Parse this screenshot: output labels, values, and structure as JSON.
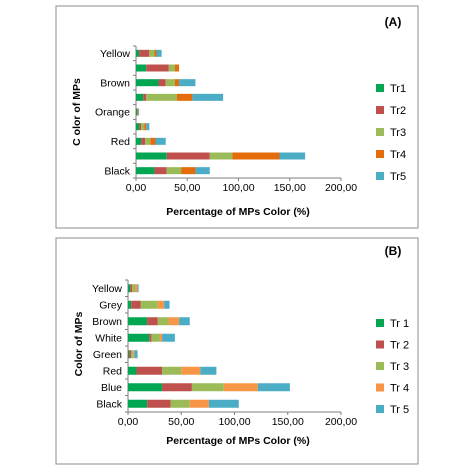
{
  "chart_data": [
    {
      "type": "bar",
      "stacked": true,
      "orientation": "horizontal",
      "panel_label": "(A)",
      "xlabel": "Percentage of MPs Color (%)",
      "ylabel": "C olor of MPs",
      "xlim": [
        0,
        200
      ],
      "xticks": [
        "0,00",
        "50,00",
        "100,00",
        "150,00",
        "200,00"
      ],
      "grid": false,
      "legend_position": "right",
      "categories": [
        "Black",
        "",
        "Red",
        "",
        "Orange",
        "",
        "Brown",
        "",
        "Yellow"
      ],
      "category_labels": [
        "Black",
        "Red",
        "Orange",
        "Brown",
        "Yellow"
      ],
      "series": [
        {
          "name": "Tr1",
          "color": "#00a651",
          "values": [
            18,
            30,
            5,
            3,
            1,
            7,
            22,
            10,
            3
          ]
        },
        {
          "name": "Tr2",
          "color": "#c0504d",
          "values": [
            12,
            42,
            4,
            2,
            0.5,
            3,
            7,
            22,
            10
          ]
        },
        {
          "name": "Tr3",
          "color": "#9bbb59",
          "values": [
            14,
            22,
            5,
            3,
            0.5,
            30,
            9,
            6,
            5
          ]
        },
        {
          "name": "Tr4",
          "color": "#e46c0a",
          "values": [
            14,
            46,
            5,
            2,
            0.5,
            15,
            4,
            4,
            2
          ]
        },
        {
          "name": "Tr5",
          "color": "#4bacc6",
          "values": [
            14,
            25,
            10,
            3,
            0.5,
            30,
            16,
            0,
            5
          ]
        }
      ]
    },
    {
      "type": "bar",
      "stacked": true,
      "orientation": "horizontal",
      "panel_label": "(B)",
      "xlabel": "Percentage of MPs Color (%)",
      "ylabel": "Color of MPs",
      "xlim": [
        0,
        200
      ],
      "xticks": [
        "0,00",
        "50,00",
        "100,00",
        "150,00",
        "200,00"
      ],
      "grid": false,
      "legend_position": "right",
      "categories": [
        "Black",
        "Blue",
        "Red",
        "Green",
        "White",
        "Brown",
        "Grey",
        "Yellow"
      ],
      "series": [
        {
          "name": "Tr 1",
          "color": "#00a651",
          "values": [
            18,
            32,
            8,
            1,
            20,
            18,
            3,
            2
          ]
        },
        {
          "name": "Tr 2",
          "color": "#c0504d",
          "values": [
            22,
            28,
            24,
            2,
            2,
            10,
            9,
            2
          ]
        },
        {
          "name": "Tr 3",
          "color": "#9bbb59",
          "values": [
            18,
            30,
            18,
            2,
            8,
            10,
            16,
            3
          ]
        },
        {
          "name": "Tr 4",
          "color": "#f79646",
          "values": [
            18,
            32,
            18,
            1,
            2,
            10,
            6,
            2
          ]
        },
        {
          "name": "Tr 5",
          "color": "#4bacc6",
          "values": [
            28,
            30,
            15,
            3,
            12,
            10,
            5,
            1
          ]
        }
      ]
    }
  ]
}
